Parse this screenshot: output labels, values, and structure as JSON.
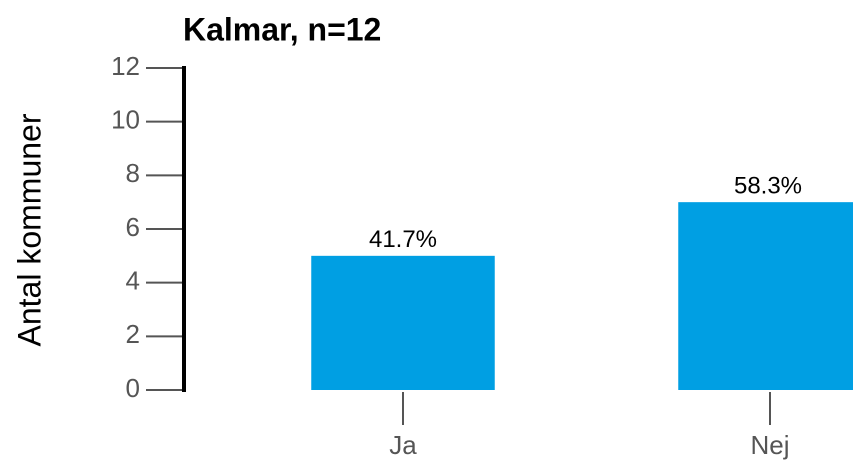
{
  "chart_data": {
    "type": "bar",
    "title": "Kalmar, n=12",
    "y_label": "Antal kommuner",
    "categories": [
      "Ja",
      "Nej"
    ],
    "values": [
      5,
      7
    ],
    "value_labels": [
      "41.7%",
      "58.3%"
    ],
    "color": "#009fe3",
    "ylim": [
      0,
      12
    ],
    "yticks": [
      0,
      2,
      4,
      6,
      8,
      10,
      12
    ],
    "grid": false
  }
}
